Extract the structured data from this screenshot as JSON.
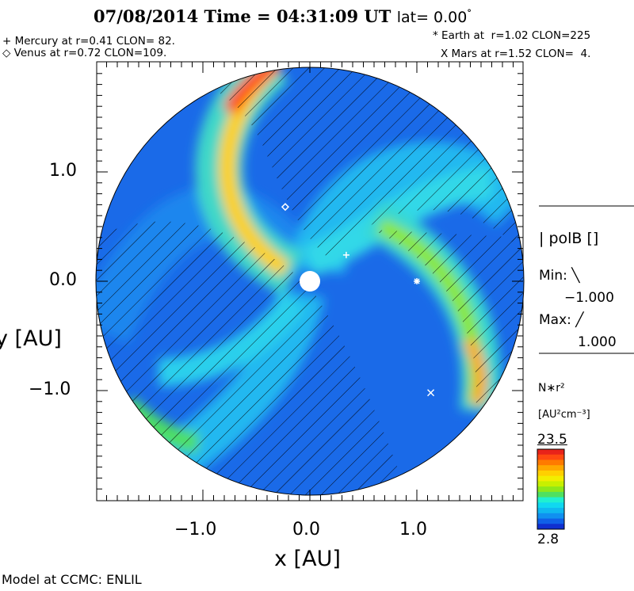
{
  "chart_data": {
    "type": "heatmap",
    "title": {
      "date": "07/08/2014",
      "time_label": "Time = 04:31:09 UT",
      "lat_label": "lat= 0.00",
      "lat_degree": "°"
    },
    "xlabel": "x [AU]",
    "ylabel": "y [AU]",
    "xlim": [
      -2,
      2
    ],
    "ylim": [
      -2,
      2
    ],
    "x_ticks": [
      {
        "v": -1,
        "label": "−1.0"
      },
      {
        "v": 0,
        "label": "0.0"
      },
      {
        "v": 1,
        "label": "1.0"
      }
    ],
    "y_ticks": [
      {
        "v": 1,
        "label": "1.0"
      },
      {
        "v": 0,
        "label": "0.0"
      },
      {
        "v": -1,
        "label": "−1.0"
      }
    ],
    "planets": [
      {
        "name": "Mercury",
        "marker": "+",
        "label": "+ Mercury at r=0.41 CLON= 82.",
        "x": 0.34,
        "y": 0.24
      },
      {
        "name": "Venus",
        "marker": "diamond",
        "label": "◇ Venus at r=0.72 CLON=109.",
        "x": -0.23,
        "y": 0.68
      },
      {
        "name": "Earth",
        "marker": "*",
        "label": "* Earth at  r=1.02 CLON=225",
        "x": 1.0,
        "y": 0.0
      },
      {
        "name": "Mars",
        "marker": "X",
        "label": "X Mars at r=1.52 CLON=  4.",
        "x": 1.13,
        "y": -1.02
      }
    ],
    "polarity": {
      "label": "polB []",
      "min_label": "Min:",
      "min_value": "−1.000",
      "max_label": "Max:",
      "max_value": "1.000"
    },
    "colorbar": {
      "quantity": "N∗r²",
      "units": "[AU²cm⁻³]",
      "max": "23.5",
      "min": "2.8",
      "colors": [
        "#e8231a",
        "#ff4a10",
        "#ff7a00",
        "#ffa800",
        "#ffd000",
        "#f2ee00",
        "#c8f000",
        "#8ee81a",
        "#4fe060",
        "#20f0d0",
        "#10d8f0",
        "#10b8f0",
        "#1090f0",
        "#1060e8",
        "#1030d0"
      ]
    },
    "footer": "Model at CCMC: ENLIL"
  }
}
